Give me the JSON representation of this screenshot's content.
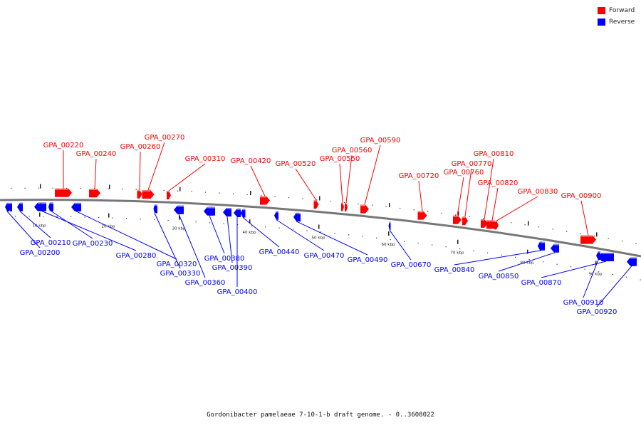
{
  "title": "Gordonibacter pamelaeae 7-10-1-b draft genome. - 0..3608022",
  "legend": [
    {
      "label": "Forward",
      "color": "#ff0000"
    },
    {
      "label": "Reverse",
      "color": "#0000ff"
    }
  ],
  "colors": {
    "forward": "#ff0000",
    "reverse": "#0000ff",
    "backbone": "#777777"
  },
  "scale_ticks": [
    "10 kbp",
    "20 kbp",
    "30 kbp",
    "40 kbp",
    "50 kbp",
    "60 kbp",
    "70 kbp",
    "80 kbp",
    "90 kbp"
  ],
  "forward_genes": [
    "GPA_00220",
    "GPA_00240",
    "GPA_00260",
    "GPA_00270",
    "GPA_00310",
    "GPA_00420",
    "GPA_00520",
    "GPA_00550",
    "GPA_00560",
    "GPA_00590",
    "GPA_00720",
    "GPA_00760",
    "GPA_00770",
    "GPA_00810",
    "GPA_00820",
    "GPA_00830",
    "GPA_00900"
  ],
  "reverse_genes": [
    "GPA_00200",
    "GPA_00210",
    "GPA_00230",
    "GPA_00280",
    "GPA_00320",
    "GPA_00330",
    "GPA_00360",
    "GPA_00380",
    "GPA_00390",
    "GPA_00400",
    "GPA_00440",
    "GPA_00470",
    "GPA_00490",
    "GPA_00670",
    "GPA_00840",
    "GPA_00850",
    "GPA_00870",
    "GPA_00910",
    "GPA_00920"
  ]
}
